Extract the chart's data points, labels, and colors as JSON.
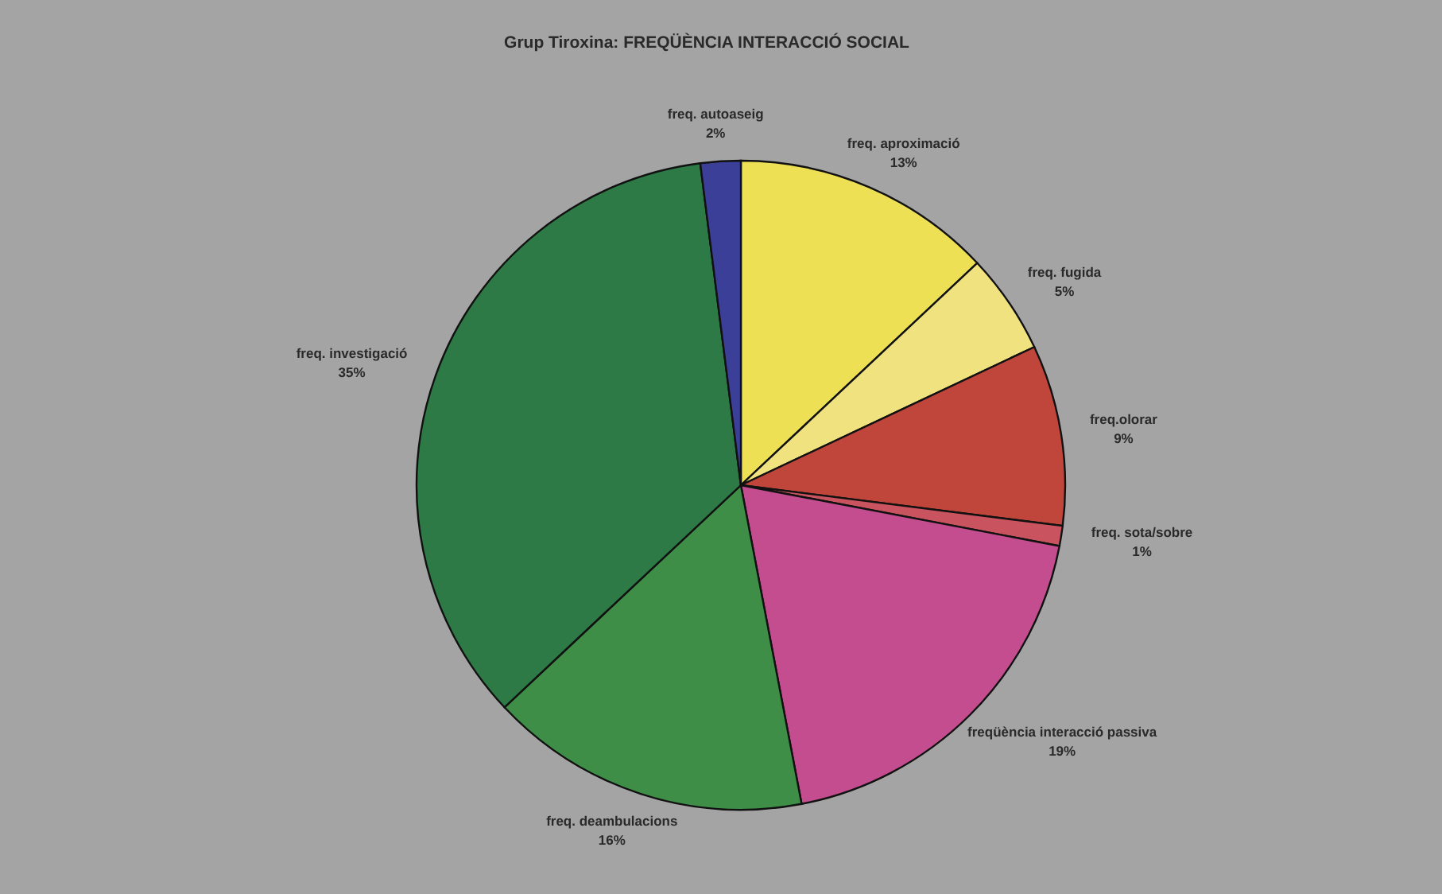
{
  "chart_data": {
    "type": "pie",
    "title": "Grup Tiroxina: FREQÜÈNCIA INTERACCIÓ SOCIAL",
    "categories": [
      "freq. aproximació",
      "freq. fugida",
      "freq.olorar",
      "freq. sota/sobre",
      "freqüència interacció passiva",
      "freq. deambulacions",
      "freq. investigació",
      "freq. autoaseig"
    ],
    "values": [
      13,
      5,
      9,
      1,
      19,
      16,
      35,
      2
    ],
    "colors": [
      "#eee055",
      "#f0e27e",
      "#c0453b",
      "#c9535f",
      "#c44d8f",
      "#3e8e48",
      "#2e7a46",
      "#3c3f98"
    ],
    "value_labels": [
      "13%",
      "5%",
      "9%",
      "1%",
      "19%",
      "16%",
      "35%",
      "2%"
    ]
  }
}
